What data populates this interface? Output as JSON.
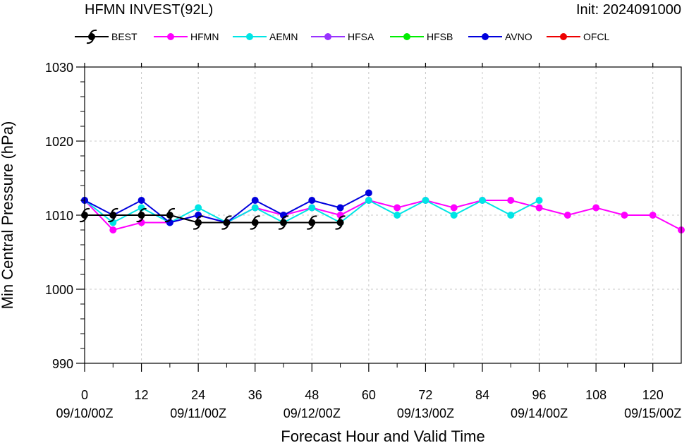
{
  "chart_data": {
    "type": "line",
    "title": "HFMN INVEST(92L)",
    "init_label": "Init: 2024091000",
    "xlabel": "Forecast Hour and Valid Time",
    "ylabel": "Min Central Pressure (hPa)",
    "xlim": [
      0,
      126
    ],
    "ylim": [
      990,
      1030
    ],
    "xticks": [
      0,
      12,
      24,
      36,
      48,
      60,
      72,
      84,
      96,
      108,
      120
    ],
    "xticks_minor": [
      6,
      18,
      30,
      42,
      54,
      66,
      78,
      90,
      102,
      114
    ],
    "xtick_labels": [
      "0",
      "12",
      "24",
      "36",
      "48",
      "60",
      "72",
      "84",
      "96",
      "108",
      "120"
    ],
    "valid_time_labels": [
      {
        "hour": 0,
        "label": "09/10/00Z"
      },
      {
        "hour": 24,
        "label": "09/11/00Z"
      },
      {
        "hour": 48,
        "label": "09/12/00Z"
      },
      {
        "hour": 72,
        "label": "09/13/00Z"
      },
      {
        "hour": 96,
        "label": "09/14/00Z"
      },
      {
        "hour": 120,
        "label": "09/15/00Z"
      }
    ],
    "yticks": [
      990,
      1000,
      1010,
      1020,
      1030
    ],
    "ytick_labels": [
      "990",
      "1000",
      "1010",
      "1020",
      "1030"
    ],
    "grid": true,
    "legend_position": "top",
    "series": [
      {
        "name": "BEST",
        "color": "#000000",
        "marker": "hurricane-icon",
        "x": [
          0,
          6,
          12,
          18,
          24,
          30,
          36,
          42,
          48,
          54
        ],
        "y": [
          1010,
          1010,
          1010,
          1010,
          1009,
          1009,
          1009,
          1009,
          1009,
          1009
        ]
      },
      {
        "name": "HFMN",
        "color": "#ff00ff",
        "marker": "circle",
        "x": [
          0,
          6,
          12,
          18,
          24,
          30,
          36,
          42,
          48,
          54,
          60,
          66,
          72,
          78,
          84,
          90,
          96,
          102,
          108,
          114,
          120,
          126
        ],
        "y": [
          1012,
          1008,
          1009,
          1009,
          1010,
          1009,
          1011,
          1010,
          1011,
          1010,
          1012,
          1011,
          1012,
          1011,
          1012,
          1012,
          1011,
          1010,
          1011,
          1010,
          1010,
          1008
        ]
      },
      {
        "name": "AEMN",
        "color": "#00e5e5",
        "marker": "circle",
        "x": [
          0,
          6,
          12,
          18,
          24,
          30,
          36,
          42,
          48,
          54,
          60,
          66,
          72,
          78,
          84,
          90,
          96
        ],
        "y": [
          1012,
          1009,
          1011,
          1009,
          1011,
          1009,
          1011,
          1009,
          1011,
          1009,
          1012,
          1010,
          1012,
          1010,
          1012,
          1010,
          1012
        ]
      },
      {
        "name": "HFSA",
        "color": "#9933ff",
        "marker": "circle",
        "x": [],
        "y": []
      },
      {
        "name": "HFSB",
        "color": "#00ee00",
        "marker": "circle",
        "x": [],
        "y": []
      },
      {
        "name": "AVNO",
        "color": "#0000dd",
        "marker": "circle",
        "x": [
          0,
          6,
          12,
          18,
          24,
          30,
          36,
          42,
          48,
          54,
          60
        ],
        "y": [
          1012,
          1010,
          1012,
          1009,
          1010,
          1009,
          1012,
          1010,
          1012,
          1011,
          1013
        ]
      },
      {
        "name": "OFCL",
        "color": "#ee0000",
        "marker": "circle",
        "x": [],
        "y": []
      }
    ]
  }
}
